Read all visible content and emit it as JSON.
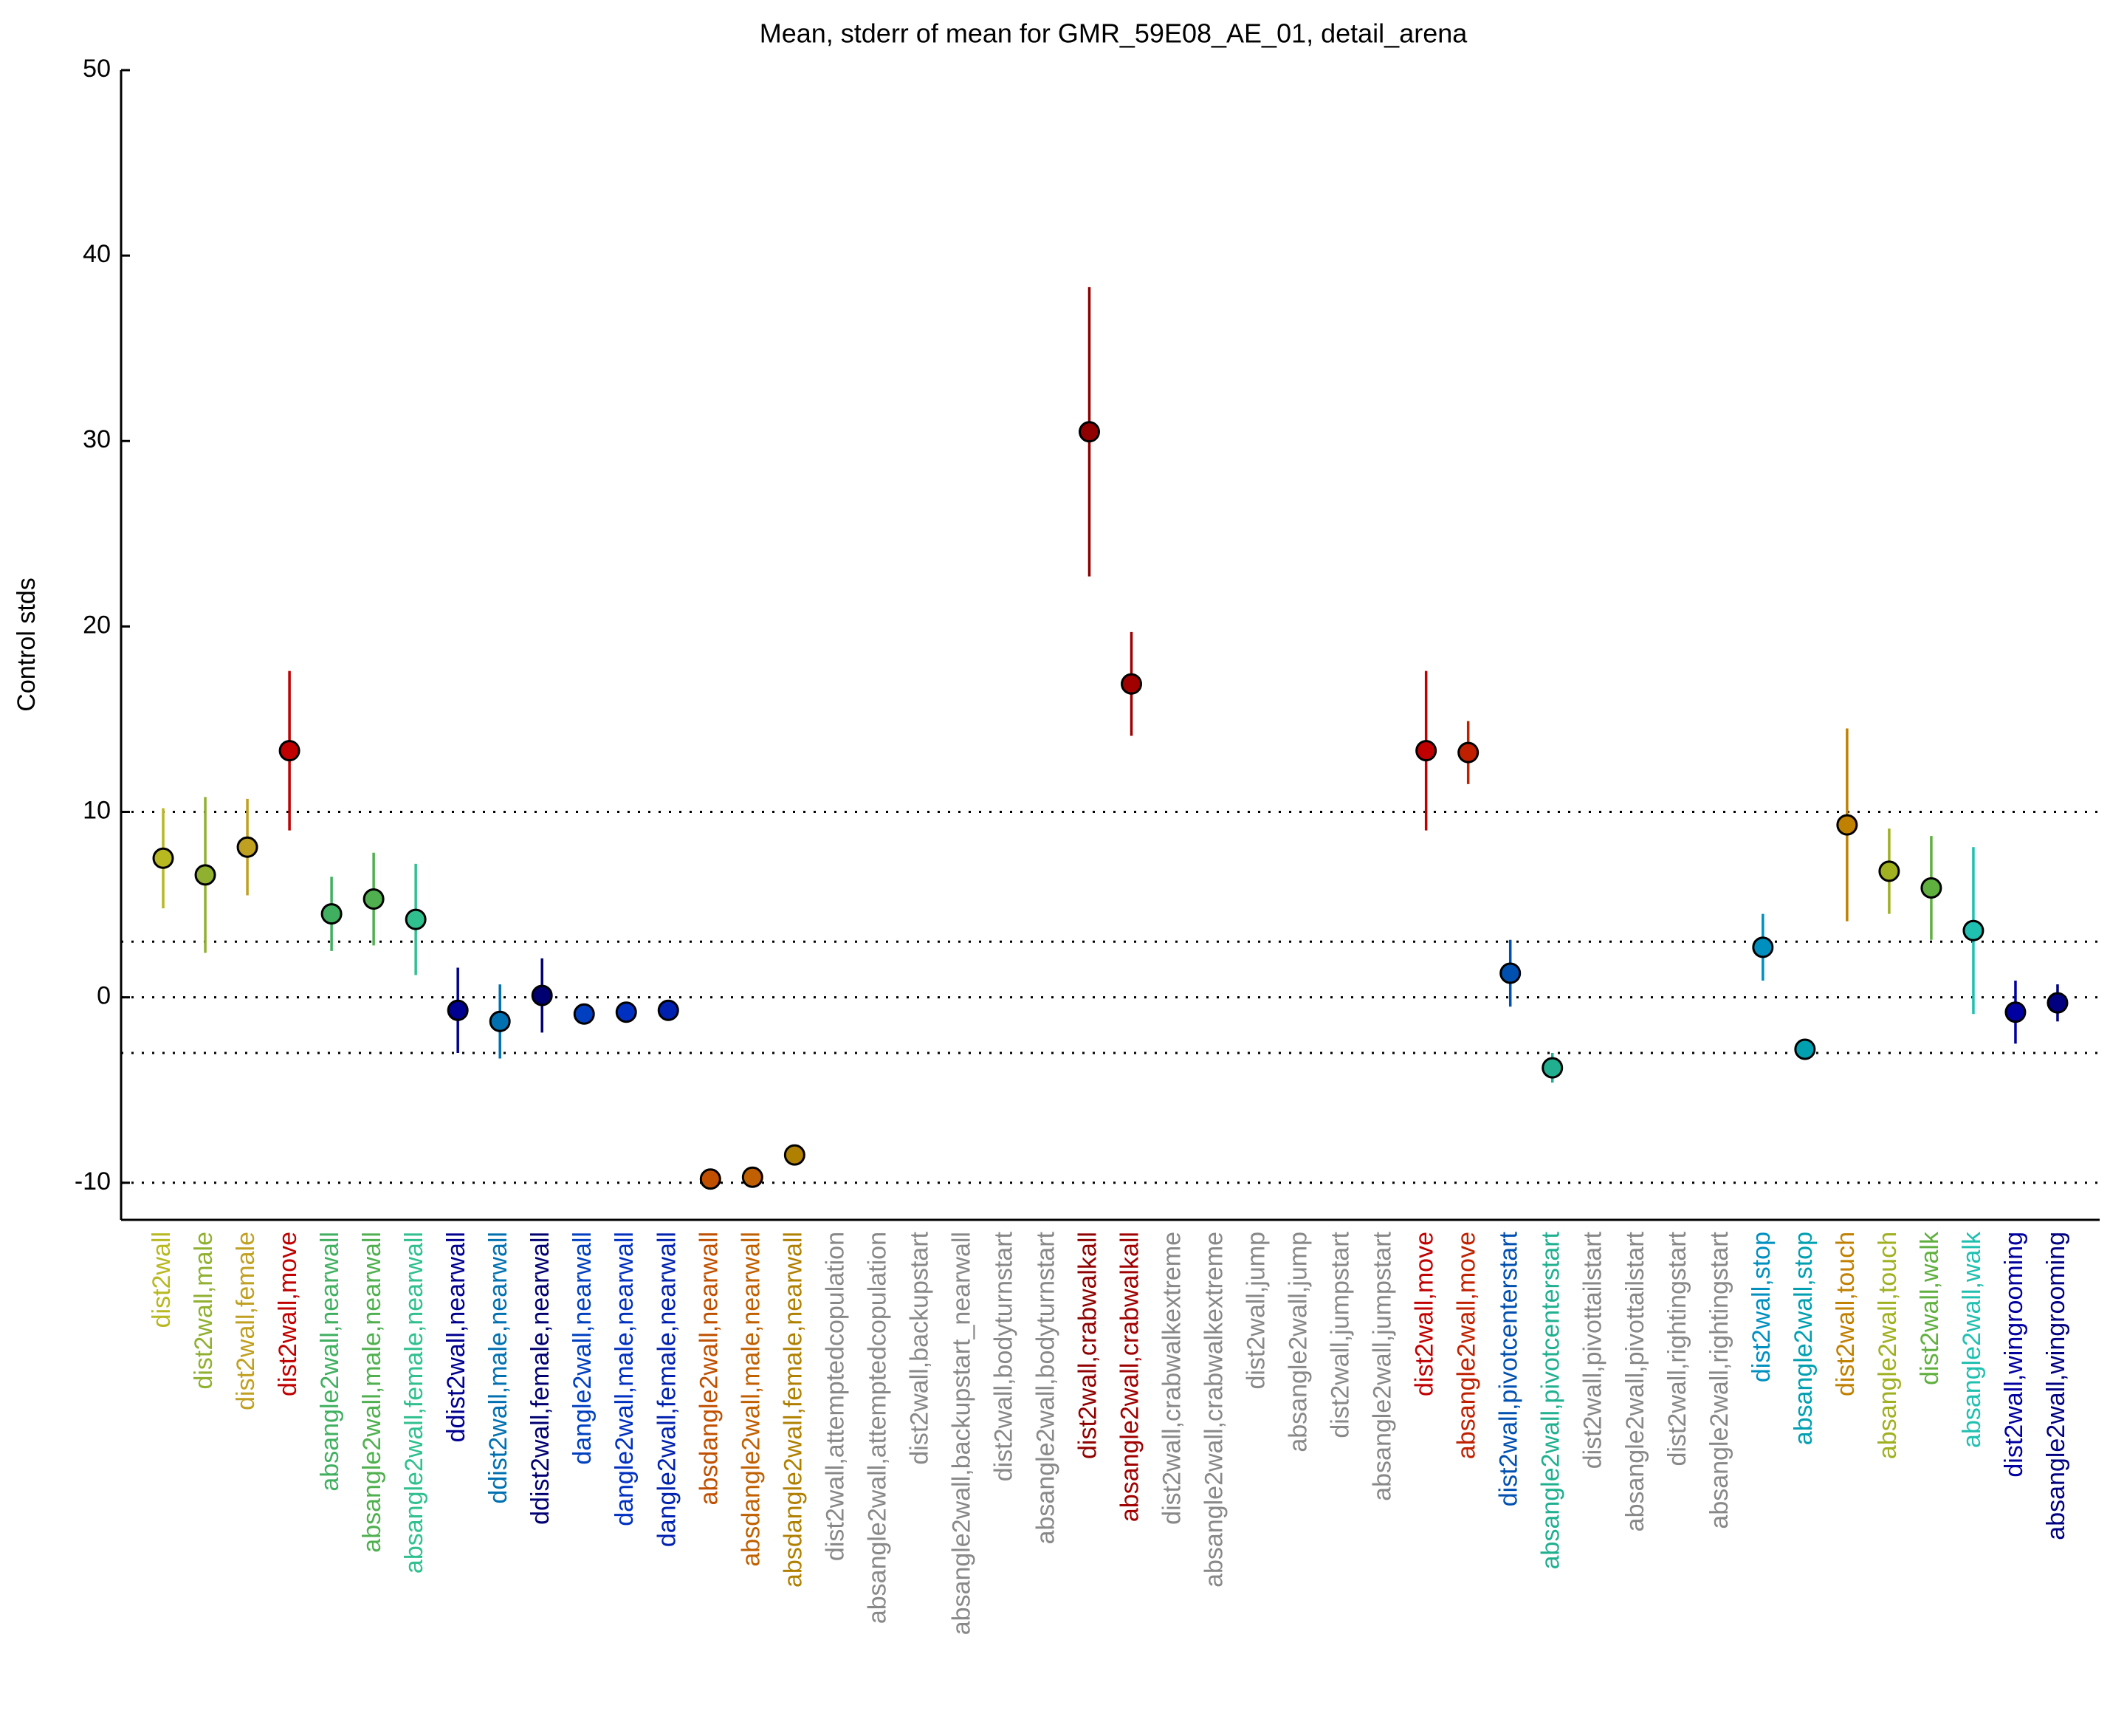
{
  "chart_data": {
    "type": "errorbar",
    "title": "Mean, stderr of mean for GMR_59E08_AE_01, detail_arena",
    "y_label": "Control stds",
    "categories": [
      "dist2wall",
      "dist2wall,male",
      "dist2wall,female",
      "dist2wall,move",
      "absangle2wall,nearwall",
      "absangle2wall,male,nearwall",
      "absangle2wall,female,nearwall",
      "ddist2wall,nearwall",
      "ddist2wall,male,nearwall",
      "ddist2wall,female,nearwall",
      "dangle2wall,nearwall",
      "dangle2wall,male,nearwall",
      "dangle2wall,female,nearwall",
      "absdangle2wall,nearwall",
      "absdangle2wall,male,nearwall",
      "absdangle2wall,female,nearwall",
      "dist2wall,attemptedcopulation",
      "absangle2wall,attemptedcopulation",
      "dist2wall,backupstart",
      "absangle2wall,backupstart_nearwall",
      "dist2wall,bodyturnstart",
      "absangle2wall,bodyturnstart",
      "dist2wall,crabwalkall",
      "absangle2wall,crabwalkall",
      "dist2wall,crabwalkextreme",
      "absangle2wall,crabwalkextreme",
      "dist2wall,jump",
      "absangle2wall,jump",
      "dist2wall,jumpstart",
      "absangle2wall,jumpstart",
      "dist2wall,move",
      "absangle2wall,move",
      "dist2wall,pivotcenterstart",
      "absangle2wall,pivotcenterstart",
      "dist2wall,pivottailstart",
      "absangle2wall,pivottailstart",
      "dist2wall,rightingstart",
      "absangle2wall,rightingstart",
      "dist2wall,stop",
      "absangle2wall,stop",
      "dist2wall,touch",
      "absangle2wall,touch",
      "dist2wall,walk",
      "absangle2wall,walk",
      "dist2wall,wingrooming",
      "absangle2wall,wingrooming"
    ],
    "values": [
      7.5,
      6.6,
      8.1,
      13.3,
      4.5,
      5.3,
      4.2,
      -0.7,
      -1.3,
      0.1,
      -0.9,
      -0.8,
      -0.7,
      -9.8,
      -9.7,
      -8.5,
      null,
      null,
      null,
      null,
      null,
      null,
      30.5,
      16.9,
      null,
      null,
      null,
      null,
      null,
      null,
      13.3,
      13.2,
      1.3,
      -3.8,
      null,
      null,
      null,
      null,
      2.7,
      -2.8,
      9.3,
      6.8,
      5.9,
      3.6,
      -0.8,
      -0.3
    ],
    "errors": [
      2.7,
      4.2,
      2.6,
      4.3,
      2.0,
      2.5,
      3.0,
      2.3,
      2.0,
      2.0,
      0.5,
      0.5,
      0.5,
      0.3,
      0.3,
      0.4,
      null,
      null,
      null,
      null,
      null,
      null,
      7.8,
      2.8,
      null,
      null,
      null,
      null,
      null,
      null,
      4.3,
      1.7,
      1.8,
      0.8,
      null,
      null,
      null,
      null,
      1.8,
      0.4,
      5.2,
      2.3,
      2.8,
      4.5,
      1.7,
      1.0
    ],
    "colors": [
      "#b8b820",
      "#90b030",
      "#c0a020",
      "#c00000",
      "#40b060",
      "#50b050",
      "#30c090",
      "#000090",
      "#0070b0",
      "#000070",
      "#0040c0",
      "#0030c0",
      "#0020b0",
      "#c05000",
      "#c06000",
      "#b08000",
      "#888888",
      "#888888",
      "#888888",
      "#888888",
      "#888888",
      "#888888",
      "#900000",
      "#a00000",
      "#888888",
      "#888888",
      "#888888",
      "#888888",
      "#888888",
      "#888888",
      "#c00000",
      "#c02000",
      "#0050b0",
      "#20b090",
      "#888888",
      "#888888",
      "#888888",
      "#888888",
      "#0090c0",
      "#00a0b0",
      "#c08000",
      "#a0b020",
      "#60b040",
      "#20c0b0",
      "#0000a0",
      "#000080"
    ],
    "ylim": [
      -12,
      50
    ],
    "yticks": [
      -10,
      0,
      10,
      20,
      30,
      40,
      50
    ],
    "reference_lines": [
      10,
      3,
      0,
      -3,
      -10
    ]
  }
}
